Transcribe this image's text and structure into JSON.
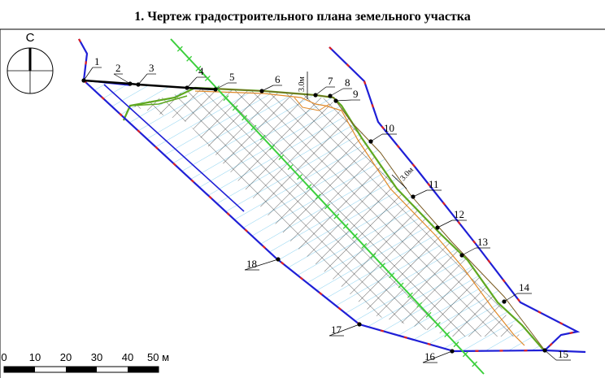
{
  "title": "1. Чертеж градостроительного плана земельного участка",
  "compass": {
    "label": "С"
  },
  "scale_bar": {
    "ticks": [
      "0",
      "10",
      "20",
      "30",
      "40"
    ],
    "last_label": "50 м"
  },
  "dimensions": {
    "north": "3.0м",
    "east": "3.0м"
  },
  "point_labels": [
    "1",
    "2",
    "3",
    "4",
    "5",
    "6",
    "7",
    "8",
    "9",
    "10",
    "11",
    "12",
    "13",
    "14",
    "15",
    "16",
    "17",
    "18"
  ],
  "colors": {
    "boundary_blue": "#1f1fd6",
    "boundary_red": "#e02020",
    "parcel_line": "#7a5a20",
    "build_zone": "#5fa820",
    "setback": "#e08a2a",
    "utility_green": "#3ccf3c",
    "hatch": "#000000",
    "hatch_cyan": "#3fb5e8"
  }
}
